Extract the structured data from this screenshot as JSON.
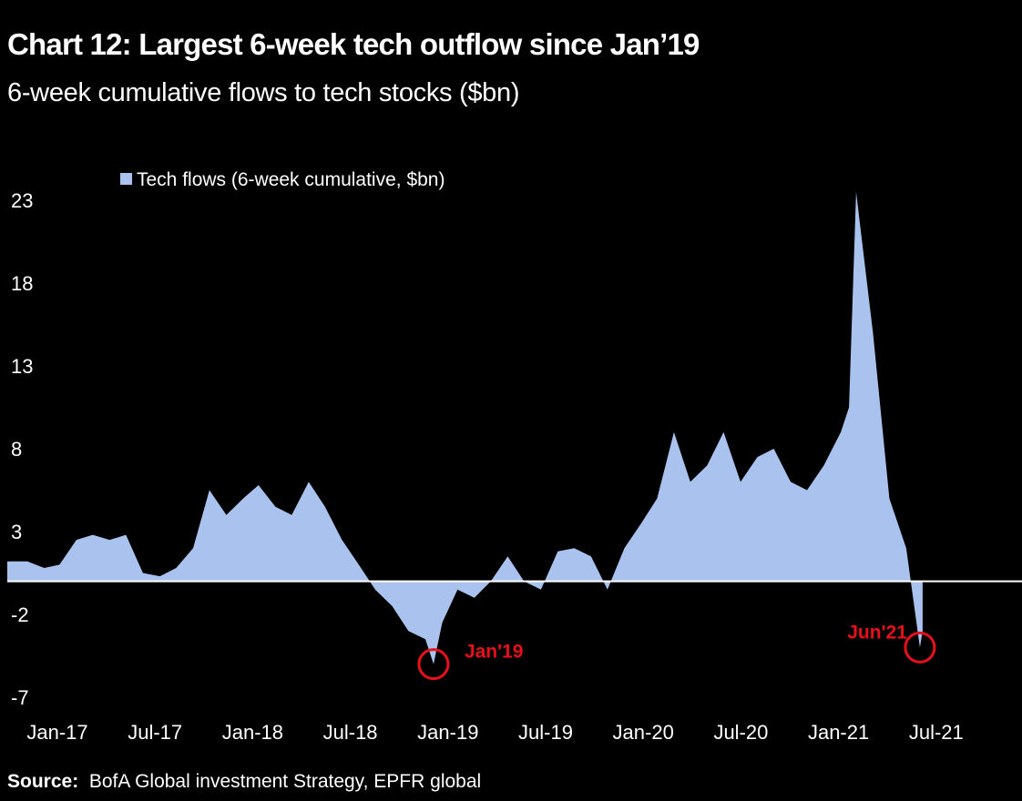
{
  "title": "Chart 12: Largest 6-week tech outflow since Jan’19",
  "subtitle": "6-week cumulative flows to tech stocks ($bn)",
  "source_label": "Source:",
  "source_text": "BofA Global investment Strategy, EPFR global",
  "chart_data": {
    "type": "area",
    "legend": "Tech flows (6-week cumulative, $bn)",
    "legend_position": "top-left",
    "ylim": [
      -7,
      24
    ],
    "yticks": [
      23,
      18,
      13,
      8,
      3,
      -2,
      -7
    ],
    "xticks": [
      "Jan-17",
      "Jul-17",
      "Jan-18",
      "Jul-18",
      "Jan-19",
      "Jul-19",
      "Jan-20",
      "Jul-20",
      "Jan-21",
      "Jul-21"
    ],
    "xlim": [
      "2016-12-31",
      "2021-08-31"
    ],
    "grid": false,
    "zero_line": true,
    "fill_color": "#a9c3ee",
    "annotation_color": "#e8101a",
    "annotations": [
      {
        "label": "Jan'19",
        "date": "2019-01-15",
        "value": -5.0
      },
      {
        "label": "Jun'21",
        "date": "2021-06-25",
        "value": -4.0
      }
    ],
    "x": [
      "2016-12-31",
      "2017-01-31",
      "2017-02-28",
      "2017-03-31",
      "2017-04-30",
      "2017-05-31",
      "2017-06-30",
      "2017-07-31",
      "2017-08-31",
      "2017-09-30",
      "2017-10-31",
      "2017-11-30",
      "2017-12-31",
      "2018-01-31",
      "2018-02-28",
      "2018-03-31",
      "2018-04-30",
      "2018-05-31",
      "2018-06-30",
      "2018-07-31",
      "2018-08-31",
      "2018-09-30",
      "2018-10-31",
      "2018-11-30",
      "2018-12-31",
      "2019-01-15",
      "2019-01-31",
      "2019-02-28",
      "2019-03-31",
      "2019-04-30",
      "2019-05-31",
      "2019-06-30",
      "2019-07-31",
      "2019-08-31",
      "2019-09-30",
      "2019-10-31",
      "2019-11-30",
      "2019-12-31",
      "2020-01-31",
      "2020-02-29",
      "2020-03-31",
      "2020-04-30",
      "2020-05-31",
      "2020-06-30",
      "2020-07-31",
      "2020-08-31",
      "2020-09-30",
      "2020-10-31",
      "2020-11-30",
      "2020-12-31",
      "2021-01-31",
      "2021-02-15",
      "2021-02-28",
      "2021-03-31",
      "2021-04-30",
      "2021-05-31",
      "2021-06-25",
      "2021-06-30"
    ],
    "values": [
      1.2,
      0.8,
      1.0,
      2.5,
      2.8,
      2.5,
      2.8,
      0.5,
      0.3,
      0.8,
      2.0,
      5.5,
      4.0,
      5.0,
      5.8,
      4.5,
      4.0,
      6.0,
      4.5,
      2.5,
      1.0,
      -0.5,
      -1.5,
      -3.0,
      -3.5,
      -5.0,
      -2.5,
      -0.5,
      -1.0,
      0.0,
      1.5,
      0.0,
      -0.5,
      1.8,
      2.0,
      1.5,
      -0.5,
      2.0,
      3.5,
      5.0,
      9.0,
      6.0,
      7.0,
      9.0,
      6.0,
      7.5,
      8.0,
      6.0,
      5.5,
      7.0,
      9.0,
      10.5,
      23.5,
      15.0,
      5.0,
      2.0,
      -4.0,
      -3.0
    ]
  }
}
